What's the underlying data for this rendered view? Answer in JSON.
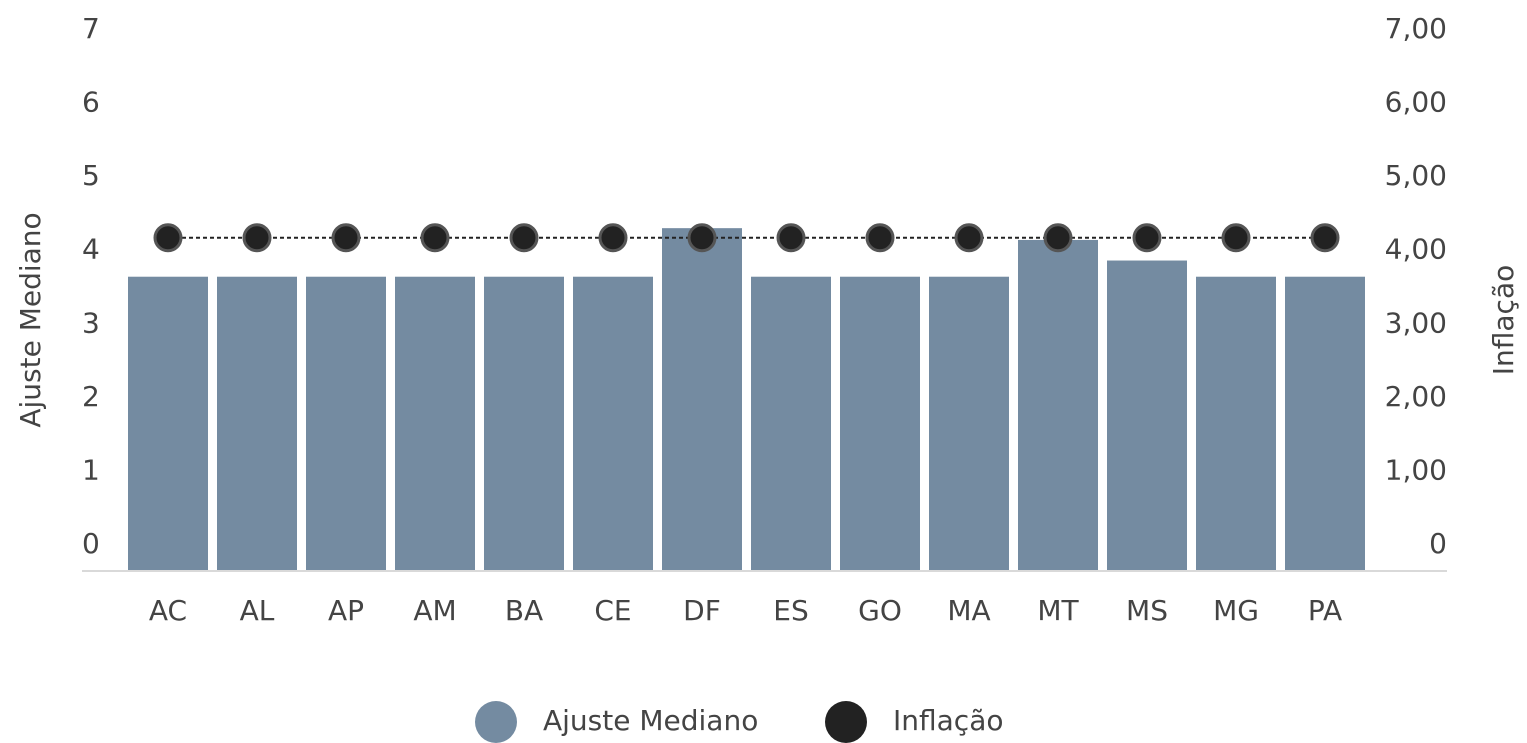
{
  "chart_data": {
    "type": "bar_line",
    "categories": [
      "AC",
      "AL",
      "AP",
      "AM",
      "BA",
      "CE",
      "DF",
      "ES",
      "GO",
      "MA",
      "MT",
      "MS",
      "MG",
      "PA"
    ],
    "series": [
      {
        "name": "Ajuste Mediano",
        "color": "#748ba1",
        "type": "bar",
        "values": [
          4.0,
          4.0,
          4.0,
          4.0,
          4.0,
          4.0,
          4.66,
          4.0,
          4.0,
          4.0,
          4.5,
          4.22,
          4.0,
          4.0
        ]
      },
      {
        "name": "Inflação",
        "color": "#222222",
        "type": "line",
        "axis": "y2",
        "values": [
          4.53,
          4.53,
          4.53,
          4.53,
          4.53,
          4.53,
          4.53,
          4.53,
          4.53,
          4.53,
          4.53,
          4.53,
          4.53,
          4.53
        ]
      }
    ],
    "ylabel": "Ajuste Mediano",
    "y2label": "Inflação",
    "ylim": [
      0,
      7
    ],
    "yticks": [
      0,
      1,
      2,
      3,
      4,
      5,
      6,
      7
    ],
    "y2lim": [
      0,
      7
    ],
    "y2ticks": [
      0,
      {
        "value": 1,
        "label": "1,00"
      },
      {
        "value": 2,
        "label": "2,00"
      },
      {
        "value": 3,
        "label": "3,00"
      },
      {
        "value": 4,
        "label": "4,00"
      },
      {
        "value": 5,
        "label": "5,00"
      },
      {
        "value": 6,
        "label": "6,00"
      },
      {
        "value": 7,
        "label": "7,00"
      }
    ],
    "legend": "bottom"
  }
}
